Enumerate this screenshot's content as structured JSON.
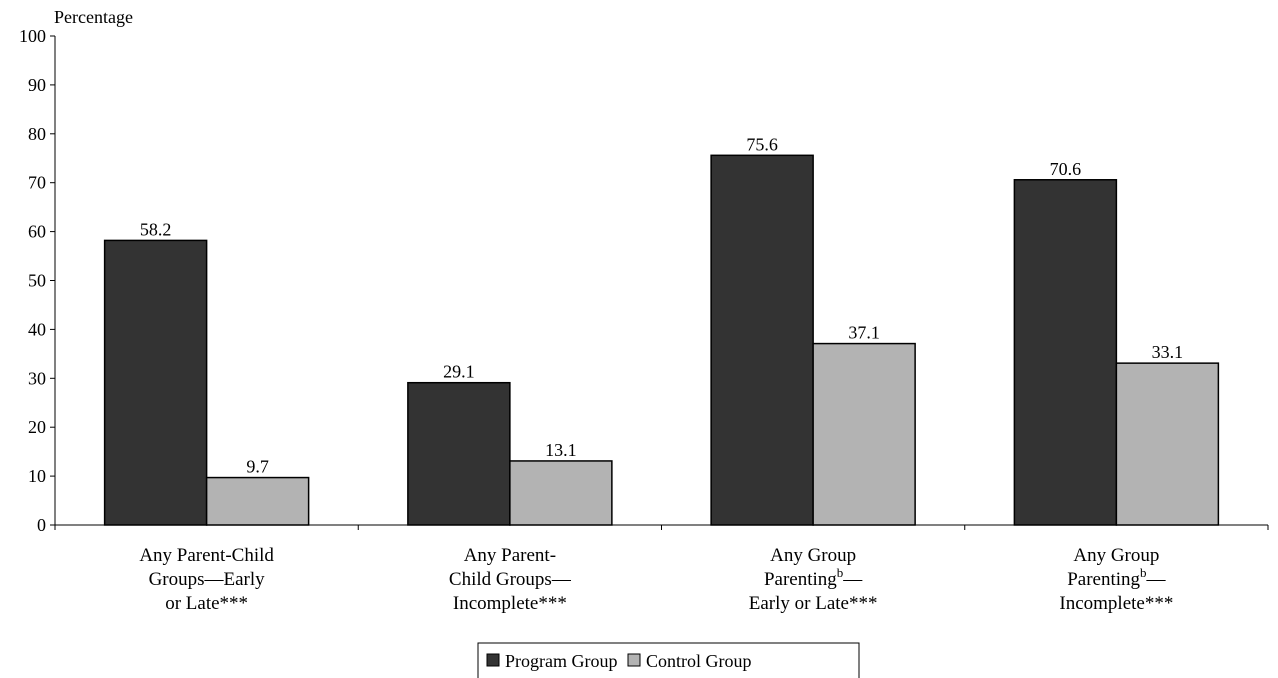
{
  "chart_data": {
    "type": "bar",
    "ylabel": "Percentage",
    "ylim": [
      0,
      100
    ],
    "yticks": [
      0,
      10,
      20,
      30,
      40,
      50,
      60,
      70,
      80,
      90,
      100
    ],
    "grid": false,
    "legend_position": "bottom",
    "categories": [
      [
        "Any Parent-Child",
        "Groups—Early",
        "or Late***"
      ],
      [
        "Any Parent-",
        "Child Groups—",
        "Incomplete***"
      ],
      [
        "Any Group",
        "Parenting",
        "b",
        "—",
        "Early or Late***"
      ],
      [
        "Any Group",
        "Parenting",
        "b",
        "—",
        "Incomplete***"
      ]
    ],
    "series": [
      {
        "name": "Program Group",
        "color": "#333333",
        "values": [
          58.2,
          29.1,
          75.6,
          70.6
        ],
        "labels": [
          "58.2",
          "29.1",
          "75.6",
          "70.6"
        ]
      },
      {
        "name": "Control Group",
        "color": "#b3b3b3",
        "values": [
          9.7,
          13.1,
          37.1,
          33.1
        ],
        "labels": [
          "9.7",
          "13.1",
          "37.1",
          "33.1"
        ]
      }
    ]
  }
}
